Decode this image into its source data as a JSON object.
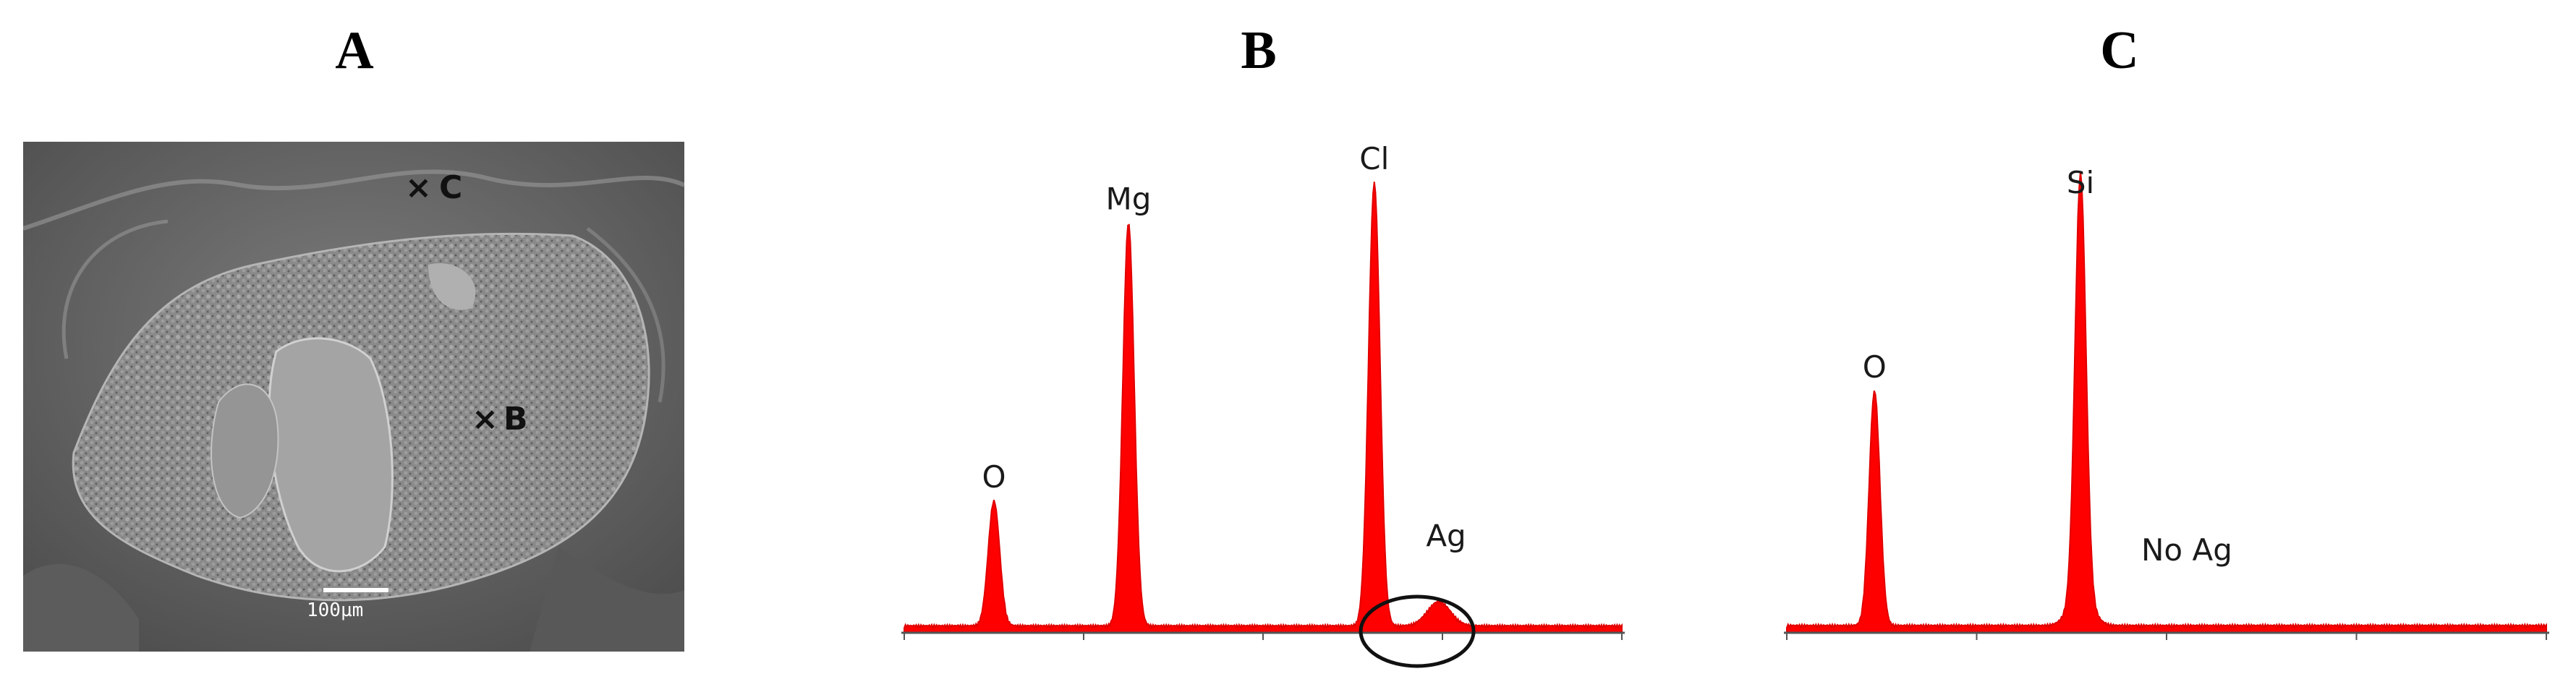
{
  "panels": {
    "a": {
      "letter": "A"
    },
    "b": {
      "letter": "B"
    },
    "c": {
      "letter": "C"
    }
  },
  "sem_image": {
    "marker_c": "C",
    "marker_b": "B",
    "marker_symbol": "×",
    "scale_bar_label": "100µm"
  },
  "chart_data": [
    {
      "type": "line",
      "panel": "B",
      "peaks": [
        {
          "label": "O",
          "x": 0.5,
          "height": 0.31
        },
        {
          "label": "Mg",
          "x": 1.25,
          "height": 1.0
        },
        {
          "label": "Cl",
          "x": 2.62,
          "height": 1.1
        },
        {
          "label": "Ag",
          "x": 2.98,
          "height": 0.06
        }
      ],
      "highlighted_peak": "Ag"
    },
    {
      "type": "line",
      "panel": "C",
      "peaks": [
        {
          "label": "O",
          "x": 0.52,
          "height": 0.56
        },
        {
          "label": "",
          "x": 1.74,
          "height": 0.08
        },
        {
          "label": "Si",
          "x": 1.74,
          "height": 1.0
        }
      ],
      "annotation": "No Ag"
    }
  ]
}
